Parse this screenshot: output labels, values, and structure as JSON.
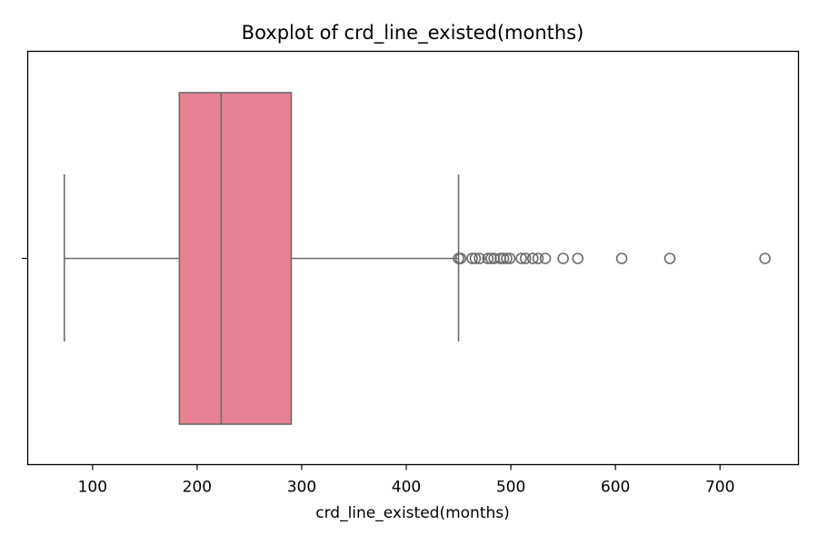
{
  "chart_data": {
    "type": "boxplot",
    "title": "Boxplot of crd_line_existed(months)",
    "xlabel": "crd_line_existed(months)",
    "ylabel": "",
    "xlim": [
      38,
      775
    ],
    "xticks": [
      100,
      200,
      300,
      400,
      500,
      600,
      700
    ],
    "grid": false,
    "box": {
      "whisker_low": 73,
      "q1": 183,
      "median": 223,
      "q3": 290,
      "whisker_high": 450,
      "outliers": [
        450,
        452,
        463,
        466,
        470,
        478,
        481,
        484,
        490,
        493,
        496,
        499,
        510,
        514,
        521,
        526,
        533,
        550,
        564,
        606,
        652,
        743
      ]
    },
    "colors": {
      "box_fill": "#e68193",
      "lines": "#6b6b6b",
      "frame": "#000000"
    }
  }
}
